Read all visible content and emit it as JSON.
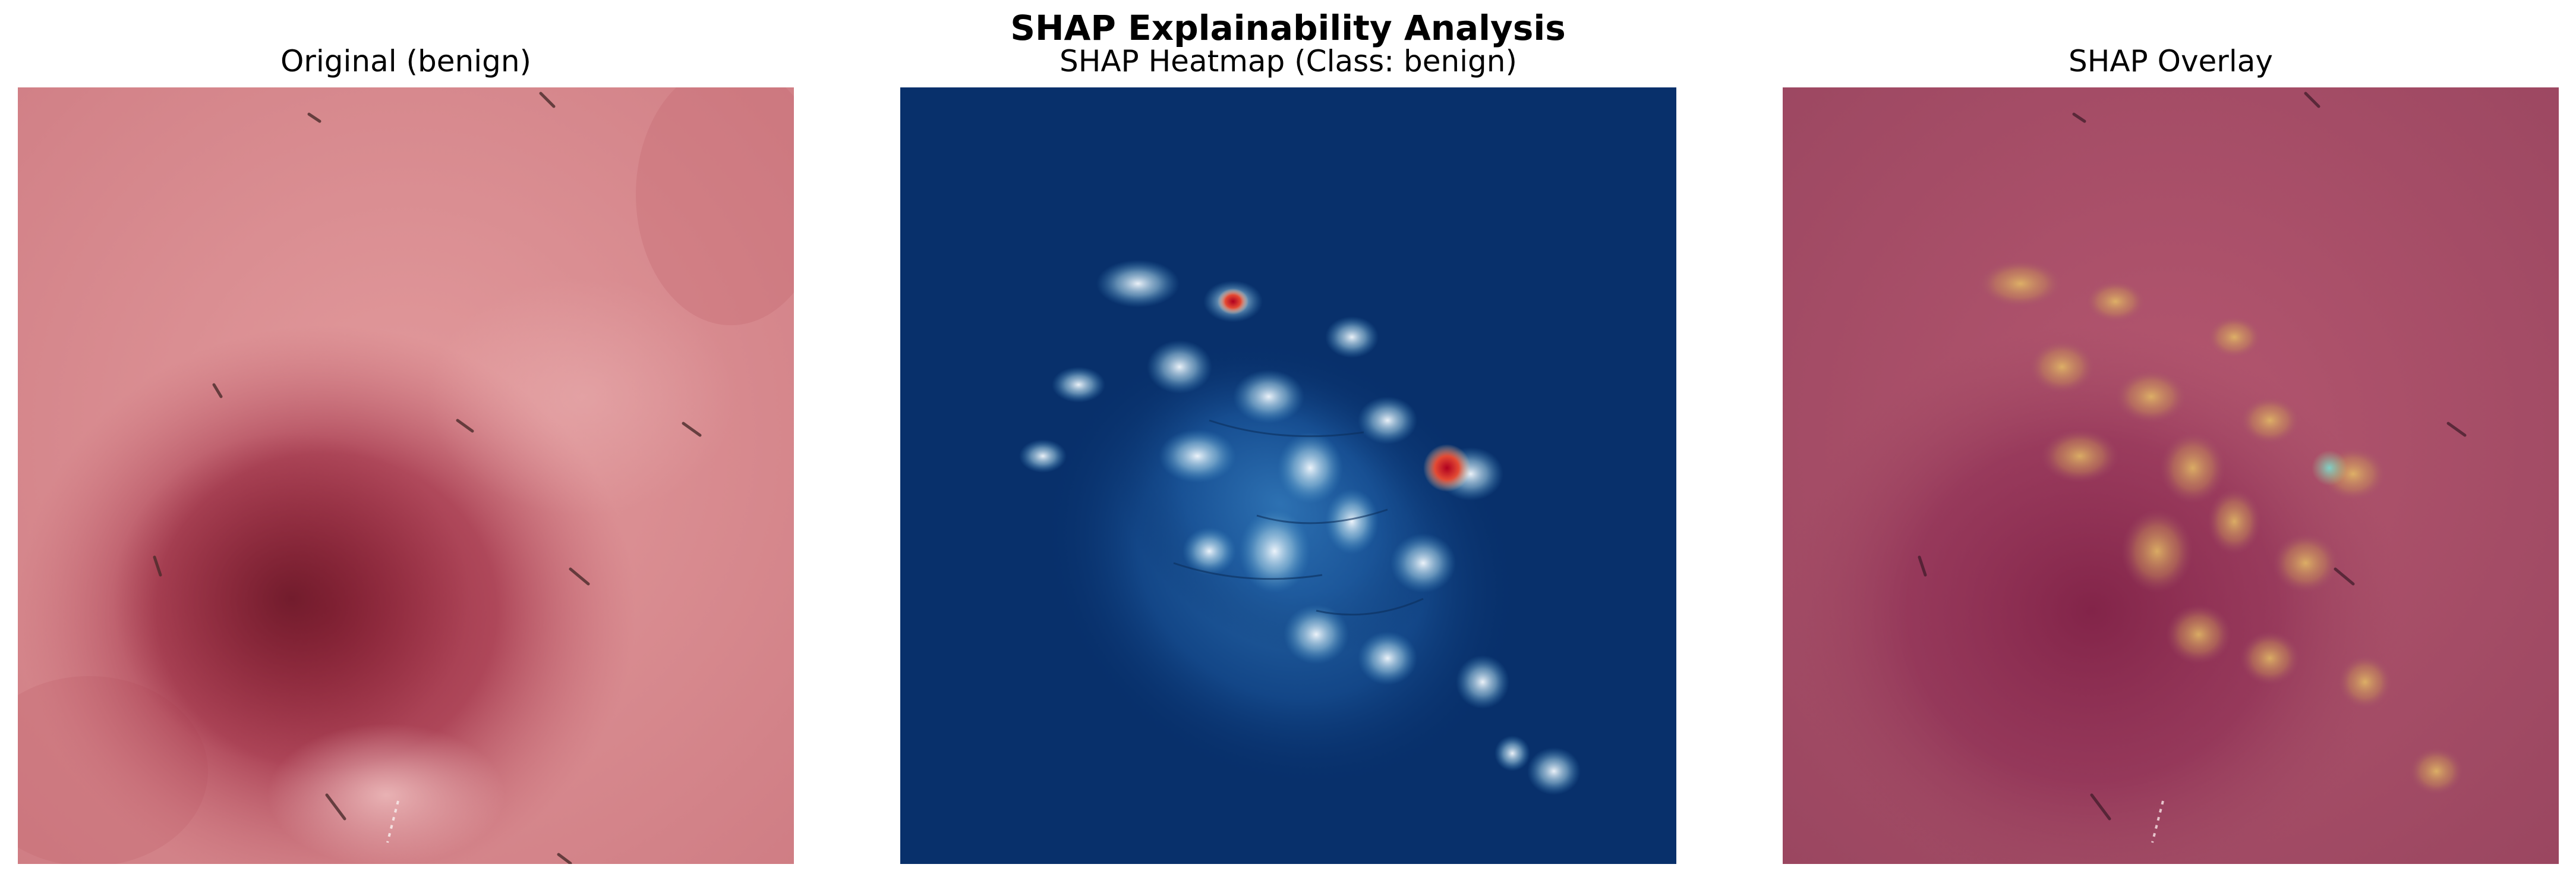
{
  "figure": {
    "title": "SHAP Explainability Analysis"
  },
  "panels": [
    {
      "title": "Original (benign)"
    },
    {
      "title": "SHAP Heatmap (Class: benign)"
    },
    {
      "title": "SHAP Overlay"
    }
  ],
  "colors": {
    "skin_base": "#dc8a8e",
    "lesion": "#9c2f45",
    "heatmap_base": "#08306b",
    "heatmap_high": "#f7fbff",
    "heatmap_peak": "#cc1f1f",
    "overlay_tint": "#a44a6a",
    "overlay_highlight": "#d9b25a"
  }
}
